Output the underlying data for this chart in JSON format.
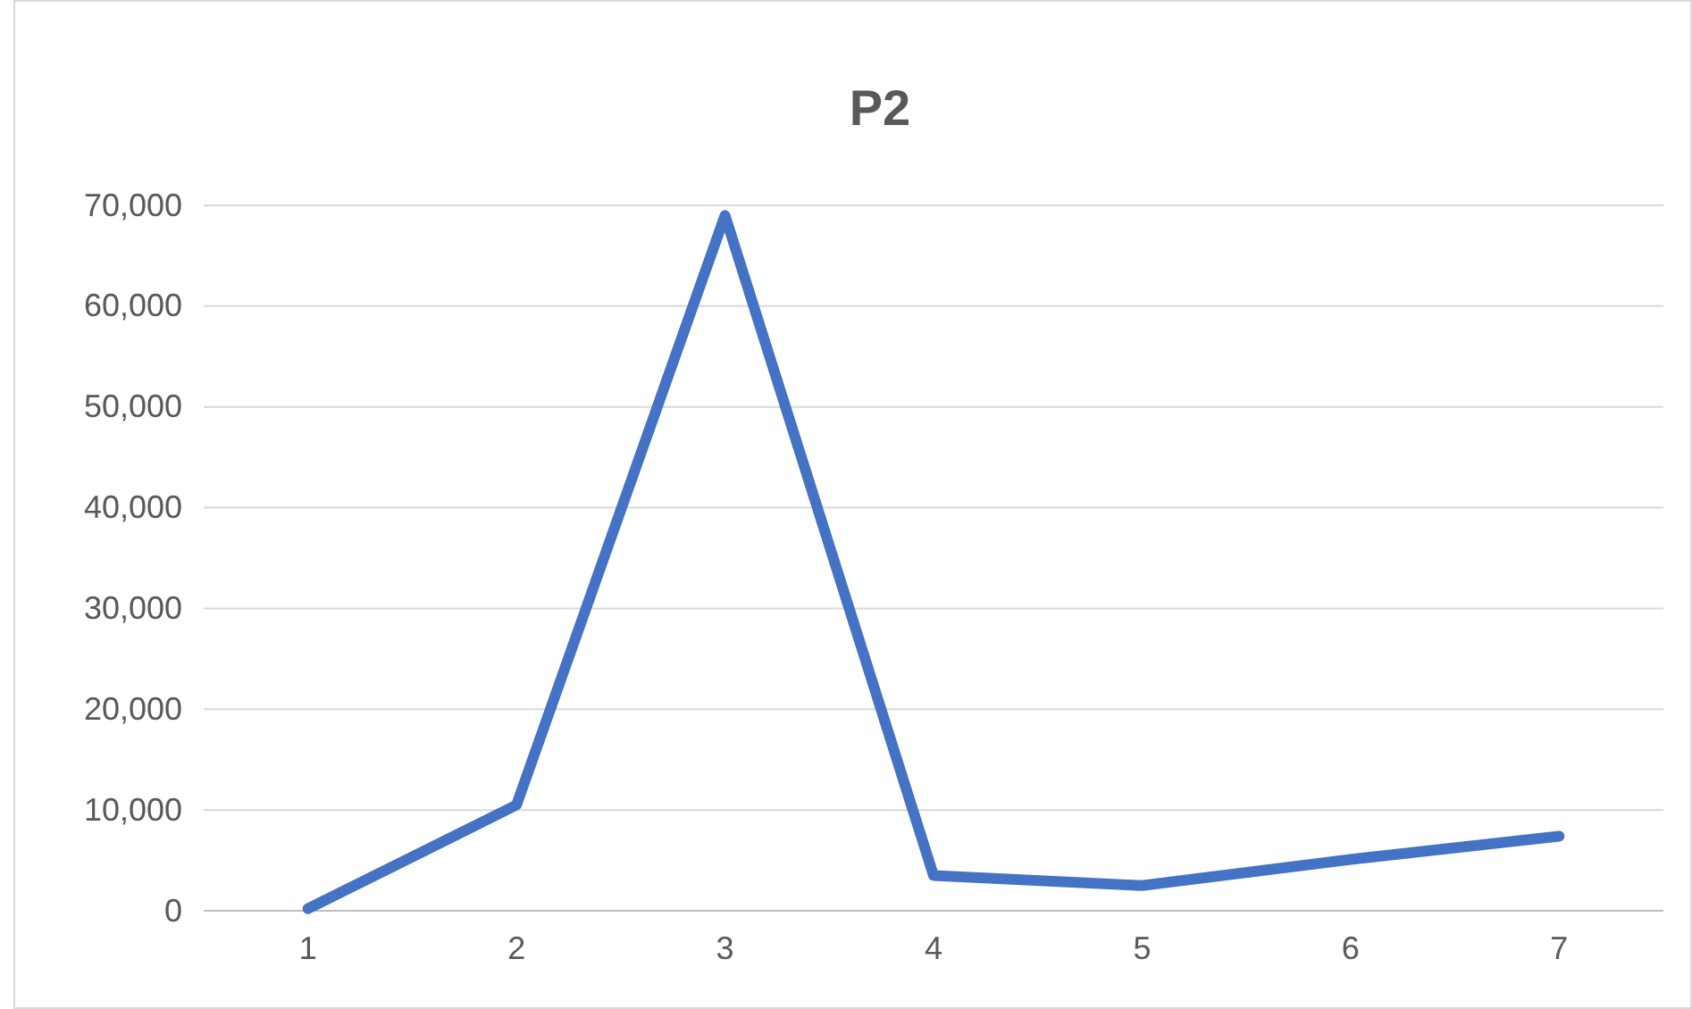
{
  "chart_data": {
    "type": "line",
    "title": "P2",
    "categories": [
      "1",
      "2",
      "3",
      "4",
      "5",
      "6",
      "7"
    ],
    "series": [
      {
        "color": "#4472c4",
        "values": [
          200,
          10500,
          69000,
          3500,
          2500,
          5100,
          7400
        ]
      }
    ],
    "ylim": [
      0,
      70000
    ],
    "yticks": [
      {
        "value": 0,
        "label": "0"
      },
      {
        "value": 10000,
        "label": "10,000"
      },
      {
        "value": 20000,
        "label": "20,000"
      },
      {
        "value": 30000,
        "label": "30,000"
      },
      {
        "value": 40000,
        "label": "40,000"
      },
      {
        "value": 50000,
        "label": "50,000"
      },
      {
        "value": 60000,
        "label": "60,000"
      },
      {
        "value": 70000,
        "label": "70,000"
      }
    ],
    "grid": "y",
    "marker": "none",
    "line_style": "solid"
  }
}
